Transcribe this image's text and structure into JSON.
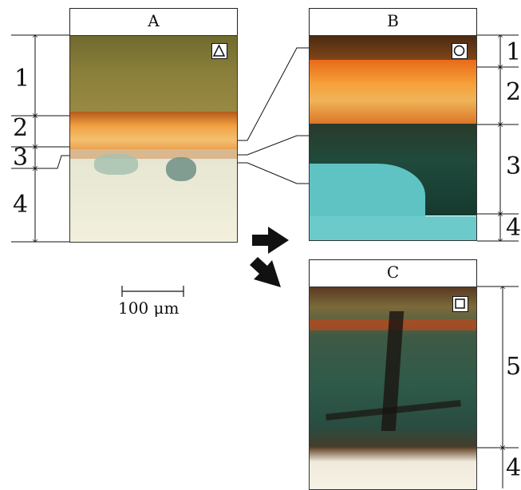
{
  "panels": {
    "a": {
      "label": "A",
      "marker": "triangle-marker",
      "layers": [
        "1",
        "2",
        "3",
        "4"
      ]
    },
    "b": {
      "label": "B",
      "marker": "circle-marker",
      "layers": [
        "1",
        "2",
        "3",
        "4"
      ]
    },
    "c": {
      "label": "C",
      "marker": "square-marker",
      "layers": [
        "5",
        "4"
      ]
    }
  },
  "scale_bar": {
    "label": "100 μm"
  },
  "arrows": [
    "arrow-to-b",
    "arrow-to-c"
  ],
  "colors": {
    "layer1_ground": "#8a7f3a",
    "layer2_orange": "#e88a2a",
    "layer3_green": "#1f4a3c",
    "layer4_base": "#f2f0dc",
    "cyan_base": "#5fc3c4",
    "outline": "#111111"
  }
}
